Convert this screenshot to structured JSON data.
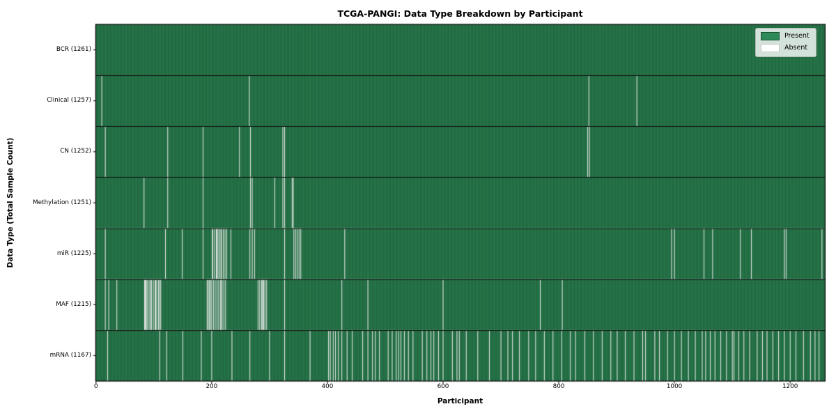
{
  "chart_data": {
    "type": "heatmap",
    "title": "TCGA-PANGI: Data Type Breakdown by Participant",
    "xlabel": "Participant",
    "ylabel": "Data Type (Total Sample Count)",
    "x_ticks": [
      0,
      200,
      400,
      600,
      800,
      1000,
      1200
    ],
    "x_range": [
      0,
      1261
    ],
    "total_participants": 1261,
    "legend_labels": [
      "Present",
      "Absent"
    ],
    "legend_position": "upper right",
    "grid": false,
    "colors": {
      "present": "#2e8b57",
      "absent": "#eeeeec",
      "bar_edge": "#000000",
      "separator": "#0d0d0d",
      "background": "#ffffff"
    },
    "rows": [
      {
        "label": "BCR (1261)",
        "data_type": "BCR",
        "present_count": 1261,
        "absent_count": 0,
        "absent_indices": []
      },
      {
        "label": "Clinical (1257)",
        "data_type": "Clinical",
        "present_count": 1257,
        "absent_count": 4,
        "absent_indices": [
          10,
          265,
          852,
          935
        ]
      },
      {
        "label": "CN (1252)",
        "data_type": "CN",
        "present_count": 1252,
        "absent_count": 9,
        "absent_indices": [
          16,
          124,
          185,
          248,
          267,
          323,
          326,
          850,
          853
        ]
      },
      {
        "label": "Methylation (1251)",
        "data_type": "Methylation",
        "present_count": 1251,
        "absent_count": 10,
        "absent_indices": [
          83,
          124,
          185,
          267,
          270,
          309,
          323,
          326,
          339,
          341
        ]
      },
      {
        "label": "miR (1225)",
        "data_type": "miR",
        "present_count": 1225,
        "absent_count": 36,
        "absent_indices": [
          16,
          120,
          149,
          185,
          201,
          202,
          205,
          208,
          209,
          211,
          214,
          216,
          217,
          220,
          223,
          226,
          233,
          266,
          270,
          274,
          326,
          342,
          345,
          348,
          351,
          354,
          430,
          995,
          1000,
          1051,
          1066,
          1114,
          1133,
          1190,
          1193,
          1255
        ]
      },
      {
        "label": "MAF (1215)",
        "data_type": "MAF",
        "present_count": 1215,
        "absent_count": 46,
        "absent_indices": [
          16,
          22,
          36,
          84,
          85,
          86,
          88,
          90,
          93,
          94,
          96,
          99,
          102,
          103,
          105,
          108,
          110,
          112,
          192,
          194,
          196,
          198,
          200,
          203,
          206,
          209,
          212,
          215,
          217,
          218,
          221,
          224,
          280,
          283,
          286,
          287,
          289,
          290,
          292,
          295,
          326,
          425,
          470,
          600,
          768,
          806
        ]
      },
      {
        "label": "mRNA (1167)",
        "data_type": "mRNA",
        "present_count": 1167,
        "absent_count": 94,
        "absent_indices": [
          20,
          110,
          122,
          150,
          182,
          200,
          235,
          266,
          300,
          326,
          370,
          402,
          405,
          410,
          414,
          419,
          425,
          434,
          443,
          461,
          470,
          478,
          483,
          490,
          505,
          512,
          519,
          523,
          527,
          533,
          540,
          548,
          564,
          572,
          579,
          584,
          592,
          600,
          616,
          624,
          628,
          640,
          660,
          680,
          700,
          712,
          720,
          732,
          748,
          760,
          775,
          790,
          805,
          820,
          829,
          845,
          860,
          875,
          890,
          901,
          915,
          930,
          945,
          950,
          966,
          974,
          988,
          1000,
          1012,
          1024,
          1036,
          1048,
          1054,
          1062,
          1070,
          1080,
          1090,
          1100,
          1103,
          1111,
          1120,
          1130,
          1143,
          1152,
          1160,
          1170,
          1180,
          1190,
          1200,
          1210,
          1223,
          1235,
          1243,
          1250
        ]
      }
    ]
  }
}
